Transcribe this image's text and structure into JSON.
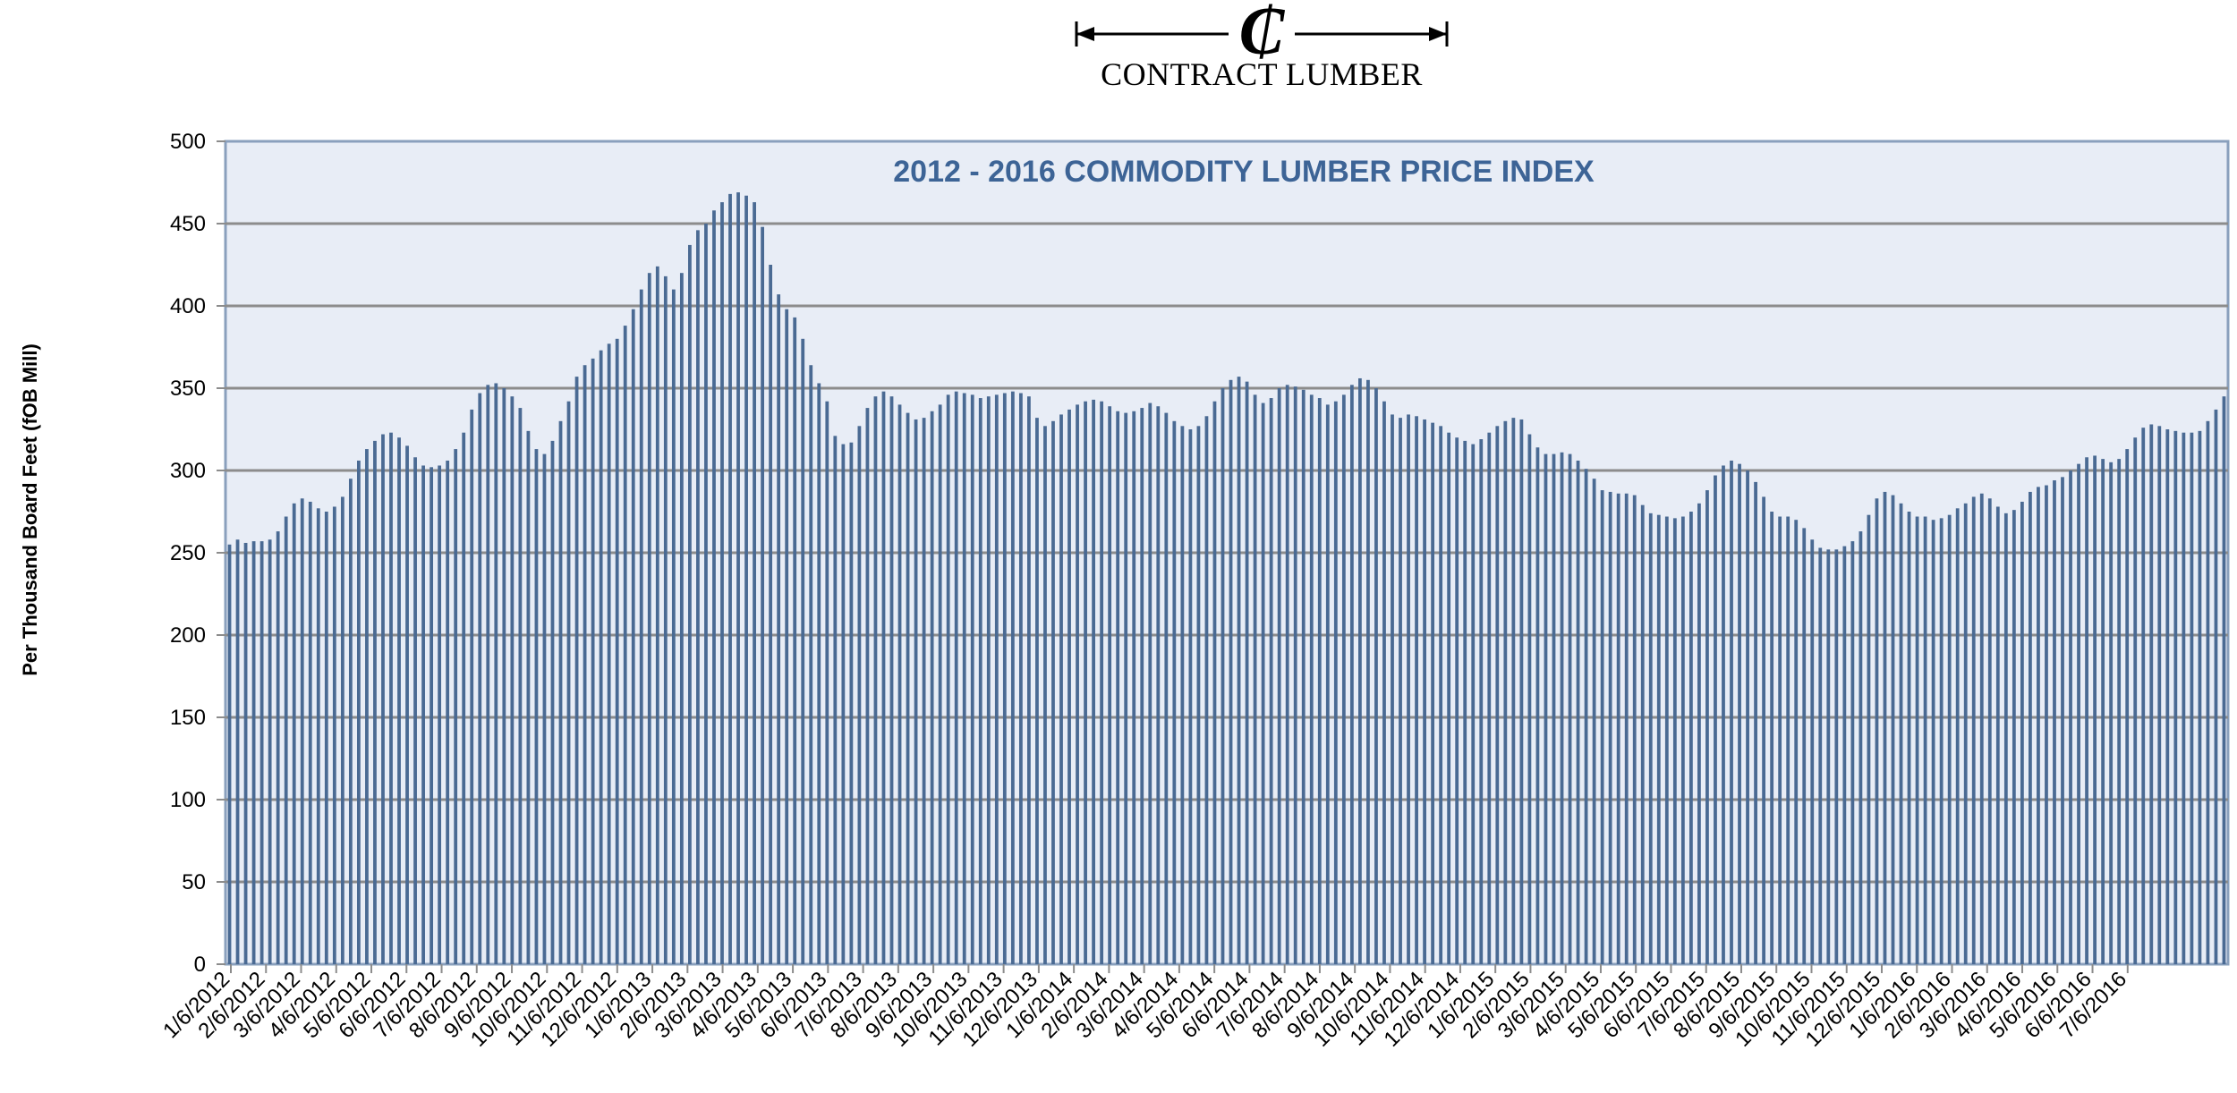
{
  "logo": {
    "text": "CONTRACT LUMBER",
    "mark": "₵"
  },
  "colors": {
    "bar": "#4a6a93",
    "plot_bg": "#e8edf6",
    "grid": "#8c8c8c",
    "title": "#3d6496",
    "frame": "#8aa0bd"
  },
  "chart_data": {
    "type": "bar",
    "title": "2012 - 2016 COMMODITY LUMBER PRICE INDEX",
    "xlabel": "",
    "ylabel": "Per Thousand Board Feet (fOB Mill)",
    "ylim": [
      0,
      500
    ],
    "yticks": [
      0,
      50,
      100,
      150,
      200,
      250,
      300,
      350,
      400,
      450,
      500
    ],
    "grid": true,
    "legend": "none",
    "xtick_labels": [
      "1/6/2012",
      "2/6/2012",
      "3/6/2012",
      "4/6/2012",
      "5/6/2012",
      "6/6/2012",
      "7/6/2012",
      "8/6/2012",
      "9/6/2012",
      "10/6/2012",
      "11/6/2012",
      "12/6/2012",
      "1/6/2013",
      "2/6/2013",
      "3/6/2013",
      "4/6/2013",
      "5/6/2013",
      "6/6/2013",
      "7/6/2013",
      "8/6/2013",
      "9/6/2013",
      "10/6/2013",
      "11/6/2013",
      "12/6/2013",
      "1/6/2014",
      "2/6/2014",
      "3/6/2014",
      "4/6/2014",
      "5/6/2014",
      "6/6/2014",
      "7/6/2014",
      "8/6/2014",
      "9/6/2014",
      "10/6/2014",
      "11/6/2014",
      "12/6/2014",
      "1/6/2015",
      "2/6/2015",
      "3/6/2015",
      "4/6/2015",
      "5/6/2015",
      "6/6/2015",
      "7/6/2015",
      "8/6/2015",
      "9/6/2015",
      "10/6/2015",
      "11/6/2015",
      "12/6/2015",
      "1/6/2016",
      "2/6/2016",
      "3/6/2016",
      "4/6/2016",
      "5/6/2016",
      "6/6/2016",
      "7/6/2016"
    ],
    "values": [
      255,
      258,
      256,
      257,
      257,
      258,
      263,
      272,
      280,
      283,
      281,
      277,
      275,
      278,
      284,
      295,
      306,
      313,
      318,
      322,
      323,
      320,
      315,
      308,
      303,
      302,
      303,
      306,
      313,
      323,
      337,
      347,
      352,
      353,
      350,
      345,
      338,
      324,
      313,
      310,
      318,
      330,
      342,
      357,
      364,
      368,
      373,
      377,
      380,
      388,
      398,
      410,
      420,
      424,
      418,
      410,
      420,
      437,
      446,
      450,
      458,
      463,
      468,
      469,
      467,
      463,
      448,
      425,
      407,
      398,
      393,
      380,
      364,
      353,
      342,
      321,
      316,
      317,
      327,
      338,
      345,
      348,
      345,
      340,
      335,
      331,
      332,
      336,
      340,
      346,
      348,
      347,
      346,
      344,
      345,
      346,
      347,
      348,
      347,
      345,
      332,
      327,
      330,
      334,
      337,
      340,
      342,
      343,
      342,
      339,
      336,
      335,
      336,
      338,
      341,
      339,
      335,
      330,
      327,
      325,
      327,
      333,
      342,
      350,
      355,
      357,
      354,
      346,
      341,
      344,
      350,
      352,
      351,
      349,
      346,
      344,
      340,
      342,
      346,
      352,
      356,
      355,
      350,
      342,
      334,
      332,
      334,
      333,
      331,
      329,
      327,
      323,
      320,
      318,
      316,
      319,
      323,
      327,
      330,
      332,
      331,
      322,
      314,
      310,
      310,
      311,
      310,
      306,
      301,
      295,
      288,
      287,
      286,
      286,
      285,
      279,
      274,
      273,
      272,
      271,
      272,
      275,
      280,
      288,
      297,
      303,
      306,
      304,
      300,
      293,
      284,
      275,
      272,
      272,
      270,
      265,
      258,
      253,
      252,
      252,
      254,
      257,
      263,
      273,
      283,
      287,
      285,
      280,
      275,
      272,
      272,
      270,
      271,
      273,
      277,
      280,
      284,
      286,
      283,
      278,
      274,
      276,
      281,
      287,
      290,
      291,
      294,
      296,
      300,
      304,
      308,
      309,
      307,
      305,
      307,
      313,
      320,
      326,
      328,
      327,
      325,
      324,
      323,
      323,
      324,
      330,
      337,
      345
    ]
  }
}
